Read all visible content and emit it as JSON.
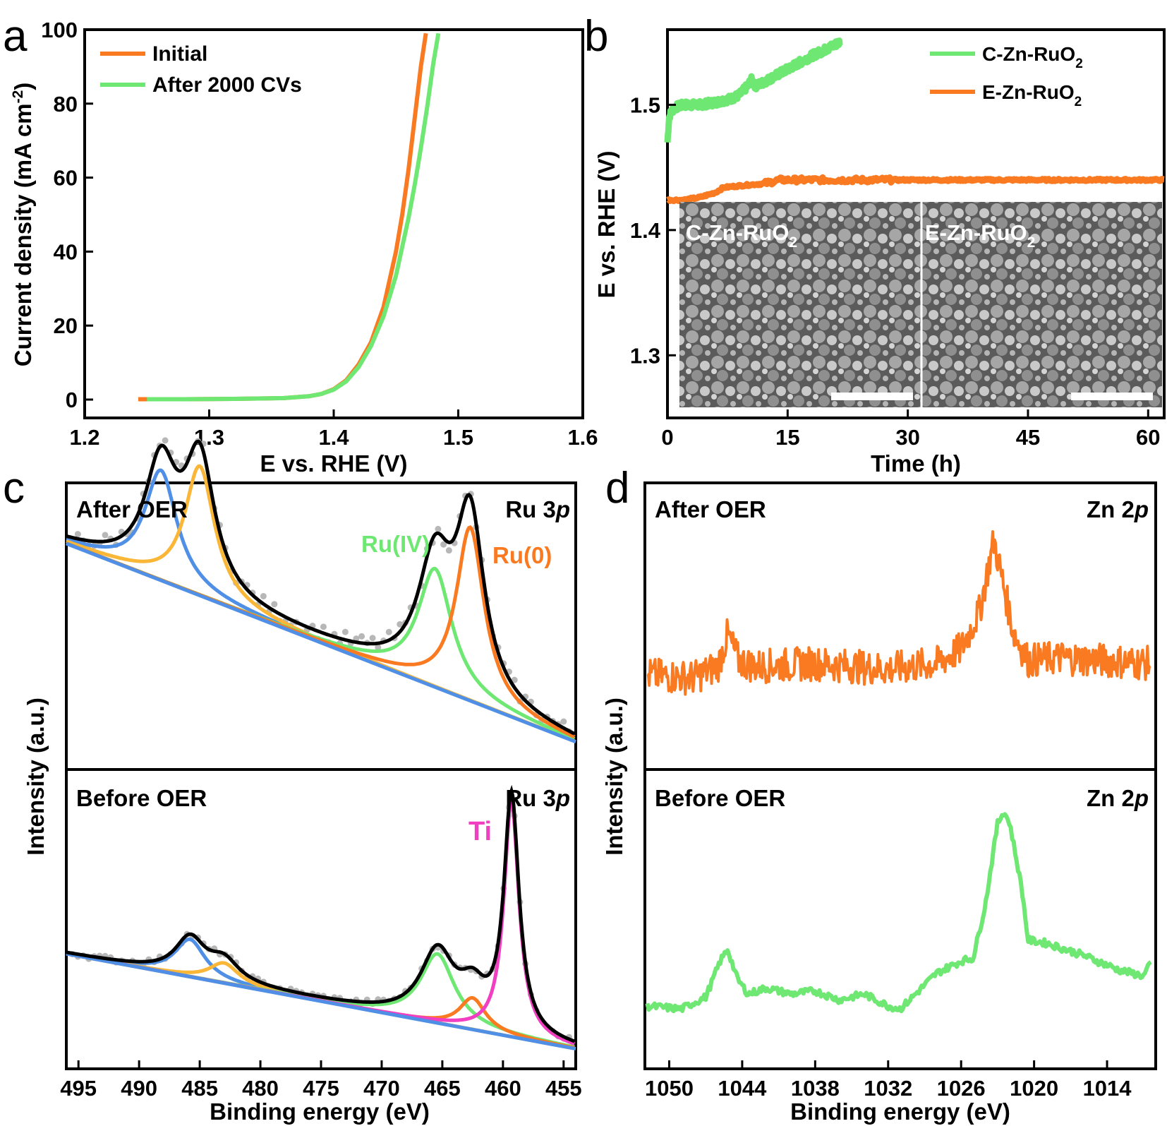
{
  "colors": {
    "orange": "#fa7a22",
    "green": "#6ee873",
    "blue": "#4f8fe6",
    "yellow": "#f9b637",
    "pink": "#f23fc2",
    "gray": "#b7b7b7",
    "black": "#000000"
  },
  "chart_data": [
    {
      "panel": "a",
      "type": "line",
      "xlabel": "E vs. RHE (V)",
      "ylabel": "Current density (mA cm",
      "ylabel_sup": "-2",
      "ylabel_end": ")",
      "xlim": [
        1.2,
        1.6
      ],
      "ylim": [
        -5,
        100
      ],
      "xticks": [
        1.2,
        1.3,
        1.4,
        1.5,
        1.6
      ],
      "xtick_labels": [
        "1.2",
        "1.3",
        "1.4",
        "1.5",
        "1.6"
      ],
      "yticks": [
        0,
        20,
        40,
        60,
        80,
        100
      ],
      "ytick_labels": [
        "0",
        "20",
        "40",
        "60",
        "80",
        "100"
      ],
      "series": [
        {
          "name": "Initial",
          "color": "#fa7a22",
          "x": [
            1.243,
            1.28,
            1.32,
            1.36,
            1.38,
            1.39,
            1.4,
            1.41,
            1.42,
            1.43,
            1.44,
            1.45,
            1.455,
            1.46,
            1.465,
            1.47,
            1.474
          ],
          "y": [
            0.1,
            0.1,
            0.2,
            0.4,
            0.9,
            1.5,
            2.8,
            5.2,
            9.5,
            15.5,
            25,
            40,
            50,
            62,
            76,
            90,
            99
          ]
        },
        {
          "name": "After 2000 CVs",
          "color": "#6ee873",
          "x": [
            1.25,
            1.28,
            1.32,
            1.36,
            1.38,
            1.39,
            1.4,
            1.41,
            1.42,
            1.43,
            1.44,
            1.45,
            1.46,
            1.465,
            1.47,
            1.475,
            1.48,
            1.484
          ],
          "y": [
            0.1,
            0.1,
            0.2,
            0.4,
            0.9,
            1.5,
            2.7,
            4.9,
            8.8,
            14.5,
            22.5,
            33.5,
            49,
            58,
            68,
            79,
            91,
            99
          ]
        }
      ]
    },
    {
      "panel": "b",
      "type": "line",
      "xlabel": "Time (h)",
      "ylabel": "E vs. RHE (V)",
      "xlim": [
        0,
        62
      ],
      "ylim": [
        1.25,
        1.56
      ],
      "xticks": [
        0,
        15,
        30,
        45,
        60
      ],
      "xtick_labels": [
        "0",
        "15",
        "30",
        "45",
        "60"
      ],
      "yticks": [
        1.3,
        1.4,
        1.5
      ],
      "ytick_labels": [
        "1.3",
        "1.4",
        "1.5"
      ],
      "series": [
        {
          "name": "C-Zn-RuO",
          "sub": "2",
          "color": "#6ee873",
          "x": [
            0,
            0.2,
            0.5,
            1,
            2,
            4,
            6,
            8,
            9,
            10,
            10.5,
            11,
            12,
            14,
            16,
            18,
            20,
            21.5
          ],
          "y": [
            1.47,
            1.49,
            1.495,
            1.498,
            1.5,
            1.5,
            1.502,
            1.505,
            1.508,
            1.515,
            1.52,
            1.515,
            1.518,
            1.525,
            1.532,
            1.539,
            1.545,
            1.55
          ]
        },
        {
          "name": "E-Zn-RuO",
          "sub": "2",
          "color": "#fa7a22",
          "x": [
            0,
            2,
            4,
            6,
            7,
            10,
            12,
            14,
            20,
            28,
            40,
            50,
            62
          ],
          "y": [
            1.424,
            1.424,
            1.426,
            1.43,
            1.434,
            1.436,
            1.437,
            1.44,
            1.44,
            1.44,
            1.44,
            1.44,
            1.44
          ]
        }
      ],
      "insets": [
        {
          "label": "C-Zn-RuO",
          "sub": "2"
        },
        {
          "label": "E-Zn-RuO",
          "sub": "2"
        }
      ]
    },
    {
      "panel": "c",
      "type": "line",
      "xlabel": "Binding energy (eV)",
      "ylabel": "Intensity (a.u.)",
      "xlim": [
        496,
        454
      ],
      "xticks": [
        495,
        490,
        485,
        480,
        475,
        470,
        465,
        460,
        455
      ],
      "xtick_labels": [
        "495",
        "490",
        "485",
        "480",
        "475",
        "470",
        "465",
        "460",
        "455"
      ],
      "subplots": [
        {
          "label": "After OER",
          "region": "Ru 3",
          "region_italic": "p",
          "annotations": [
            {
              "text": "Ru(IV)",
              "color": "#6ee873"
            },
            {
              "text": "Ru(0)",
              "color": "#fa7a22"
            }
          ],
          "background": {
            "x0": 496,
            "y0": 0.8,
            "x1": 454,
            "y1": 0.08
          },
          "peaks": [
            {
              "name": "Ru 3p1/2 Ru(IV)",
              "color": "#4f8fe6",
              "center": 488.2,
              "height": 0.4,
              "width": 1.6
            },
            {
              "name": "Ru 3p1/2 Ru(0)",
              "color": "#f9b637",
              "center": 485.0,
              "height": 0.47,
              "width": 1.5
            },
            {
              "name": "Ru 3p3/2 Ru(IV)",
              "color": "#6ee873",
              "center": 465.6,
              "height": 0.43,
              "width": 1.7
            },
            {
              "name": "Ru 3p3/2 Ru(0)",
              "color": "#fa7a22",
              "center": 462.7,
              "height": 0.63,
              "width": 1.4
            }
          ]
        },
        {
          "label": "Before OER",
          "region": "Ru 3",
          "region_italic": "p",
          "annotations": [
            {
              "text": "Ti",
              "color": "#f23fc2"
            }
          ],
          "background": {
            "x0": 496,
            "y0": 0.38,
            "x1": 454,
            "y1": 0.05
          },
          "peaks": [
            {
              "name": "Ru 3p1/2 Ru(IV)",
              "color": "#4f8fe6",
              "center": 485.8,
              "height": 0.13,
              "width": 1.5
            },
            {
              "name": "Ru 3p1/2 Ru(0)",
              "color": "#f9b637",
              "center": 483.0,
              "height": 0.07,
              "width": 1.5
            },
            {
              "name": "Ru 3p3/2 Ru(IV)",
              "color": "#6ee873",
              "center": 465.4,
              "height": 0.24,
              "width": 1.7
            },
            {
              "name": "Ru 3p3/2 Ru(0)",
              "color": "#fa7a22",
              "center": 462.5,
              "height": 0.11,
              "width": 1.3
            },
            {
              "name": "Ti 2s",
              "color": "#f23fc2",
              "center": 459.3,
              "height": 0.82,
              "width": 0.75
            }
          ]
        }
      ]
    },
    {
      "panel": "d",
      "type": "line",
      "xlabel": "Binding energy (eV)",
      "ylabel": "Intensity (a.u.)",
      "xlim": [
        1052,
        1010
      ],
      "xticks": [
        1050,
        1044,
        1038,
        1032,
        1026,
        1020,
        1014
      ],
      "xtick_labels": [
        "1050",
        "1044",
        "1038",
        "1032",
        "1026",
        "1020",
        "1014"
      ],
      "subplots": [
        {
          "label": "After OER",
          "region": "Zn 2",
          "region_italic": "p",
          "color": "#fa7a22",
          "x": [
            1052,
            1048,
            1046,
            1045.2,
            1044.3,
            1043,
            1038,
            1032,
            1028,
            1026,
            1024.5,
            1023.3,
            1022.5,
            1021.7,
            1020.5,
            1018,
            1014,
            1010.5
          ],
          "y": [
            0.33,
            0.32,
            0.36,
            0.47,
            0.38,
            0.36,
            0.37,
            0.35,
            0.37,
            0.42,
            0.55,
            0.8,
            0.64,
            0.48,
            0.38,
            0.39,
            0.38,
            0.37
          ]
        },
        {
          "label": "Before OER",
          "region": "Zn 2",
          "region_italic": "p",
          "color": "#6ee873",
          "x": [
            1052,
            1049,
            1047,
            1045.8,
            1045.2,
            1044.4,
            1043.5,
            1042,
            1040,
            1038,
            1036,
            1034,
            1032,
            1031,
            1030,
            1028,
            1026,
            1025,
            1024,
            1023,
            1022.5,
            1022,
            1021,
            1020.5,
            1019,
            1016,
            1013,
            1011,
            1010.3
          ],
          "y": [
            0.21,
            0.2,
            0.24,
            0.36,
            0.4,
            0.3,
            0.25,
            0.27,
            0.25,
            0.26,
            0.23,
            0.25,
            0.21,
            0.2,
            0.24,
            0.32,
            0.36,
            0.37,
            0.55,
            0.82,
            0.86,
            0.82,
            0.6,
            0.43,
            0.42,
            0.38,
            0.33,
            0.31,
            0.36
          ]
        }
      ]
    }
  ]
}
